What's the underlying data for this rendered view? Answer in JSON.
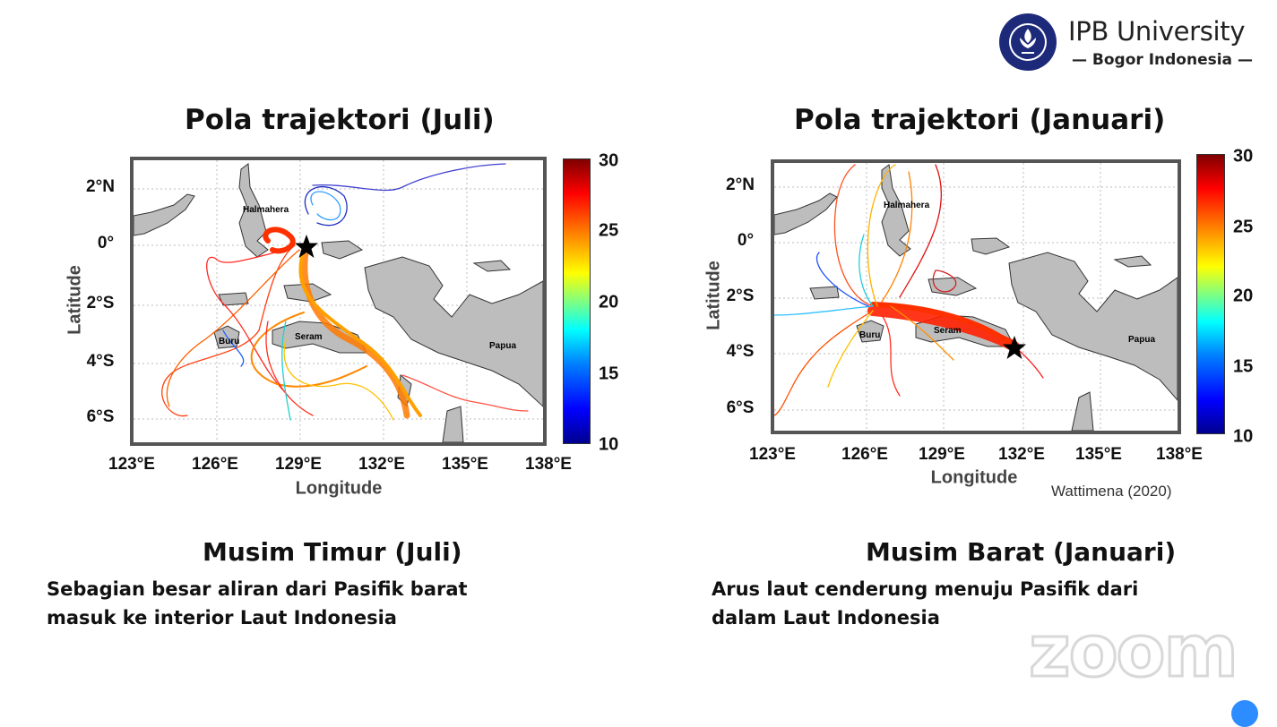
{
  "header": {
    "logo_icon": "ipb-seal-logo",
    "logo_seal_text": "INSTITUT PERTANIAN BOGOR",
    "brand_name": "IPB University",
    "brand_tagline": "— Bogor Indonesia —"
  },
  "left_panel": {
    "title": "Pola trajektori (Juli)",
    "map": {
      "xlabel": "Longitude",
      "ylabel": "Latitude",
      "lon_ticks": [
        "123°E",
        "126°E",
        "129°E",
        "132°E",
        "135°E",
        "138°E"
      ],
      "lat_ticks": [
        "2°N",
        "0°",
        "2°S",
        "4°S",
        "6°S"
      ],
      "place_labels": [
        "Halmahera",
        "Buru",
        "Seram",
        "Papua"
      ],
      "colorbar_ticks": [
        "30",
        "25",
        "20",
        "15",
        "10"
      ],
      "colorbar_range": [
        10,
        30
      ],
      "colormap": "jet",
      "marker": "star"
    },
    "subtitle": "Musim Timur (Juli)",
    "description": [
      "Sebagian besar aliran dari Pasifik barat",
      "masuk ke interior Laut Indonesia"
    ]
  },
  "right_panel": {
    "title": "Pola trajektori (Januari)",
    "map": {
      "xlabel": "Longitude",
      "ylabel": "Latitude",
      "lon_ticks": [
        "123°E",
        "126°E",
        "129°E",
        "132°E",
        "135°E",
        "138°E"
      ],
      "lat_ticks": [
        "2°N",
        "0°",
        "2°S",
        "4°S",
        "6°S"
      ],
      "place_labels": [
        "Halmahera",
        "Buru",
        "Seram",
        "Papua"
      ],
      "colorbar_ticks": [
        "30",
        "25",
        "20",
        "15",
        "10"
      ],
      "colorbar_range": [
        10,
        30
      ],
      "colormap": "jet",
      "marker": "star"
    },
    "citation": "Wattimena (2020)",
    "subtitle": "Musim Barat (Januari)",
    "description": [
      "Arus laut cenderung menuju Pasifik dari",
      "dalam Laut Indonesia"
    ]
  },
  "watermark": "zoom"
}
